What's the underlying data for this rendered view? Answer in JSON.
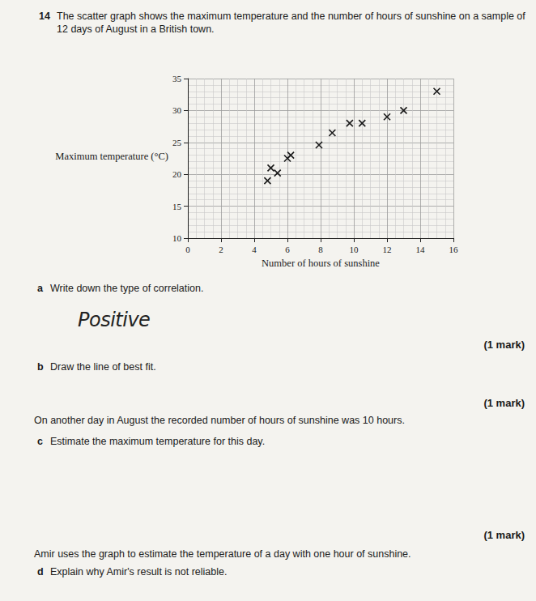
{
  "question": {
    "number": "14",
    "intro": "The scatter graph shows the maximum temperature and the number of hours of sunshine on a sample of 12 days of August in a British town.",
    "parts": [
      {
        "letter": "a",
        "text": "Write down the type of correlation.",
        "answer": "Positive",
        "marks": "(1 mark)"
      },
      {
        "letter": "b",
        "text": "Draw the line of best fit.",
        "marks": "(1 mark)"
      },
      {
        "context": "On another day in August the recorded number of hours of sunshine was 10 hours.",
        "letter": "c",
        "text": "Estimate the maximum temperature for this day.",
        "marks": "(1 mark)"
      },
      {
        "context": "Amir uses the graph to estimate the temperature of a day with one hour of sunshine.",
        "letter": "d",
        "text": "Explain why Amir's result is not reliable."
      }
    ]
  },
  "chart_data": {
    "type": "scatter",
    "x_label": "Number of hours of sunshine",
    "y_label": "Maximum temperature (°C)",
    "x": [
      4.8,
      5,
      5.4,
      6,
      6.2,
      7.9,
      8.7,
      9.75,
      10.5,
      12,
      13,
      15
    ],
    "values": [
      19,
      21,
      20.2,
      22.5,
      23,
      24.6,
      26.5,
      28,
      28,
      29,
      30,
      33
    ],
    "color": "#1a1a1a",
    "marker": "x",
    "xlim": [
      0,
      16
    ],
    "xticks": [
      0,
      2,
      4,
      6,
      8,
      10,
      12,
      14,
      16
    ],
    "ylim": [
      10,
      35
    ],
    "yticks": [
      10,
      15,
      20,
      25,
      30,
      35
    ],
    "grid": true
  }
}
